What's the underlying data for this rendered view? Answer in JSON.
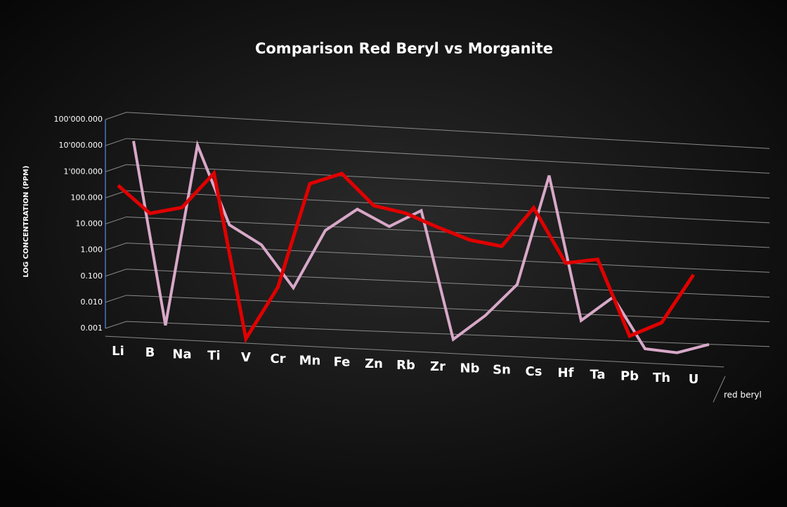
{
  "chart_data": {
    "type": "line",
    "title": "Comparison Red Beryl vs Morganite",
    "y_label": "LOG  CONCENTRATION  (PPM)",
    "log_y": true,
    "grid": true,
    "categories": [
      "Li",
      "B",
      "Na",
      "Ti",
      "V",
      "Cr",
      "Mn",
      "Fe",
      "Zn",
      "Rb",
      "Zr",
      "Nb",
      "Sn",
      "Cs",
      "Hf",
      "Ta",
      "Pb",
      "Th",
      "U"
    ],
    "ylim": [
      0.001,
      100000
    ],
    "yticks": [
      {
        "value": 0.001,
        "label": "0.001"
      },
      {
        "value": 0.01,
        "label": "0.010"
      },
      {
        "value": 0.1,
        "label": "0.100"
      },
      {
        "value": 1,
        "label": "1.000"
      },
      {
        "value": 10,
        "label": "10.000"
      },
      {
        "value": 100,
        "label": "100.000"
      },
      {
        "value": 1000,
        "label": "1'000.000"
      },
      {
        "value": 10000,
        "label": "10'000.000"
      },
      {
        "value": 100000,
        "label": "100'000.000"
      }
    ],
    "series": [
      {
        "name": "red beryl",
        "color": "#e00000",
        "values": [
          300,
          30,
          60,
          1500,
          0.0007,
          0.08,
          1000,
          3000,
          200,
          120,
          40,
          15,
          10,
          400,
          3,
          5,
          0.005,
          0.02,
          2
        ]
      },
      {
        "color": "#d8a8c8",
        "values": [
          10000,
          0.001,
          10000,
          10,
          2,
          0.05,
          10,
          80,
          20,
          100,
          0.001,
          0.01,
          0.2,
          5000,
          0.01,
          0.1,
          0.001,
          0.0008,
          0.002
        ]
      }
    ]
  }
}
